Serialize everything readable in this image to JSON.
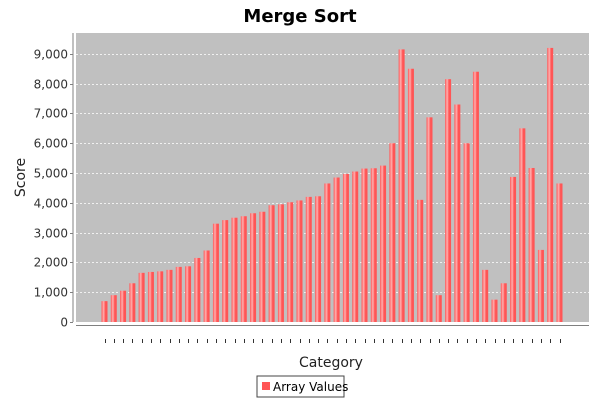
{
  "chart_data": {
    "type": "bar",
    "title": "Merge Sort",
    "xlabel": "Category",
    "ylabel": "Score",
    "ylim": [
      0,
      9700
    ],
    "yticks": [
      0,
      1000,
      2000,
      3000,
      4000,
      5000,
      6000,
      7000,
      8000,
      9000
    ],
    "ytick_labels": [
      "0",
      "1,000",
      "2,000",
      "3,000",
      "4,000",
      "5,000",
      "6,000",
      "7,000",
      "8,000",
      "9,000"
    ],
    "grid": true,
    "legend_position": "bottom-center",
    "colors": {
      "bar": "#ff5555",
      "bar_highlight": "#ffb0b0",
      "plot_background": "#c0c0c0",
      "gridline": "#ffffff"
    },
    "series": [
      {
        "name": "Array Values",
        "values": [
          700,
          900,
          1050,
          1300,
          1650,
          1680,
          1700,
          1750,
          1850,
          1870,
          2150,
          2400,
          3300,
          3420,
          3500,
          3550,
          3650,
          3700,
          3920,
          3950,
          4020,
          4080,
          4200,
          4220,
          4650,
          4850,
          4970,
          5050,
          5150,
          5160,
          5250,
          6000,
          9150,
          8500,
          4100,
          6870,
          900,
          8150,
          7300,
          6000,
          8400,
          1750,
          750,
          1300,
          4870,
          6500,
          5170,
          2420,
          9200,
          4650
        ]
      }
    ]
  }
}
